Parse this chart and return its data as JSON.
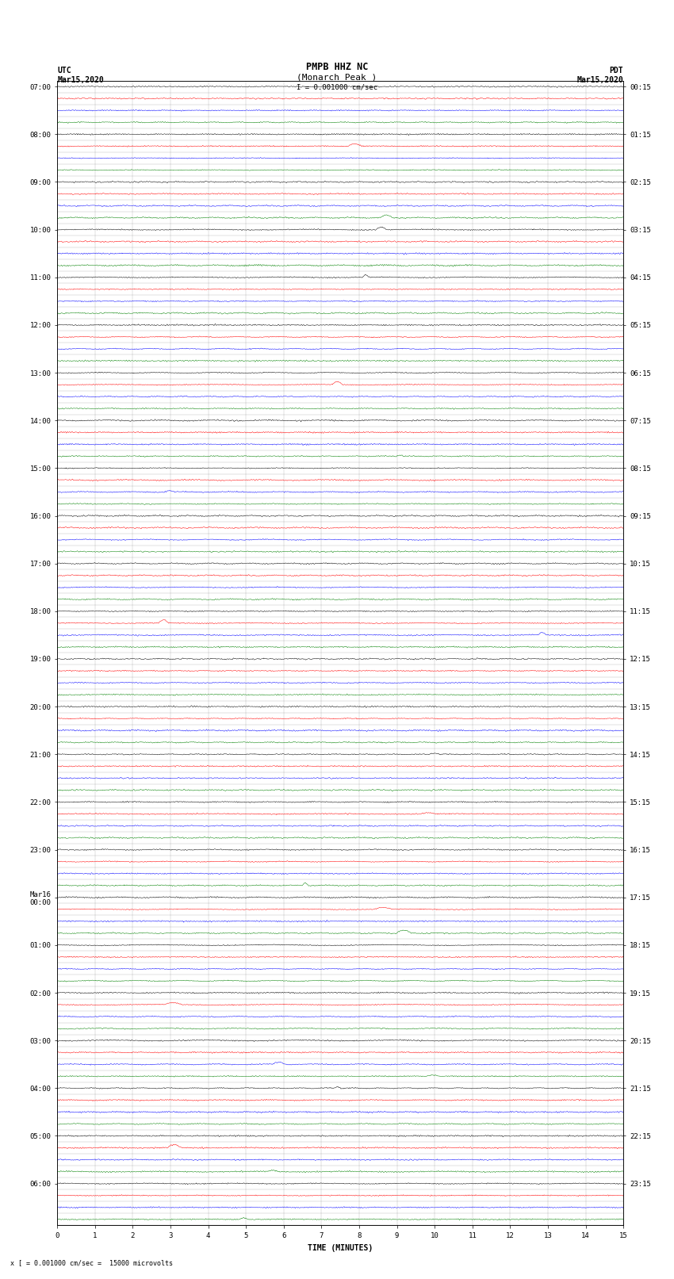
{
  "title_line1": "PMPB HHZ NC",
  "title_line2": "(Monarch Peak )",
  "scale_text": "I = 0.001000 cm/sec",
  "bottom_note": "x [ = 0.001000 cm/sec =  15000 microvolts",
  "xlabel": "TIME (MINUTES)",
  "xticks": [
    0,
    1,
    2,
    3,
    4,
    5,
    6,
    7,
    8,
    9,
    10,
    11,
    12,
    13,
    14,
    15
  ],
  "xmin": 0,
  "xmax": 15,
  "utc_labels": [
    "07:00",
    "08:00",
    "09:00",
    "10:00",
    "11:00",
    "12:00",
    "13:00",
    "14:00",
    "15:00",
    "16:00",
    "17:00",
    "18:00",
    "19:00",
    "20:00",
    "21:00",
    "22:00",
    "23:00",
    "Mar16\n00:00",
    "01:00",
    "02:00",
    "03:00",
    "04:00",
    "05:00",
    "06:00"
  ],
  "pdt_labels": [
    "00:15",
    "01:15",
    "02:15",
    "03:15",
    "04:15",
    "05:15",
    "06:15",
    "07:15",
    "08:15",
    "09:15",
    "10:15",
    "11:15",
    "12:15",
    "13:15",
    "14:15",
    "15:15",
    "16:15",
    "17:15",
    "18:15",
    "19:15",
    "20:15",
    "21:15",
    "22:15",
    "23:15"
  ],
  "trace_colors": [
    "black",
    "red",
    "blue",
    "green"
  ],
  "n_hours": 24,
  "traces_per_hour": 4,
  "bg_color": "white",
  "grid_color": "#888888",
  "title_fontsize": 8,
  "label_fontsize": 6.5,
  "axis_label_fontsize": 7,
  "figsize": [
    8.5,
    16.13
  ]
}
